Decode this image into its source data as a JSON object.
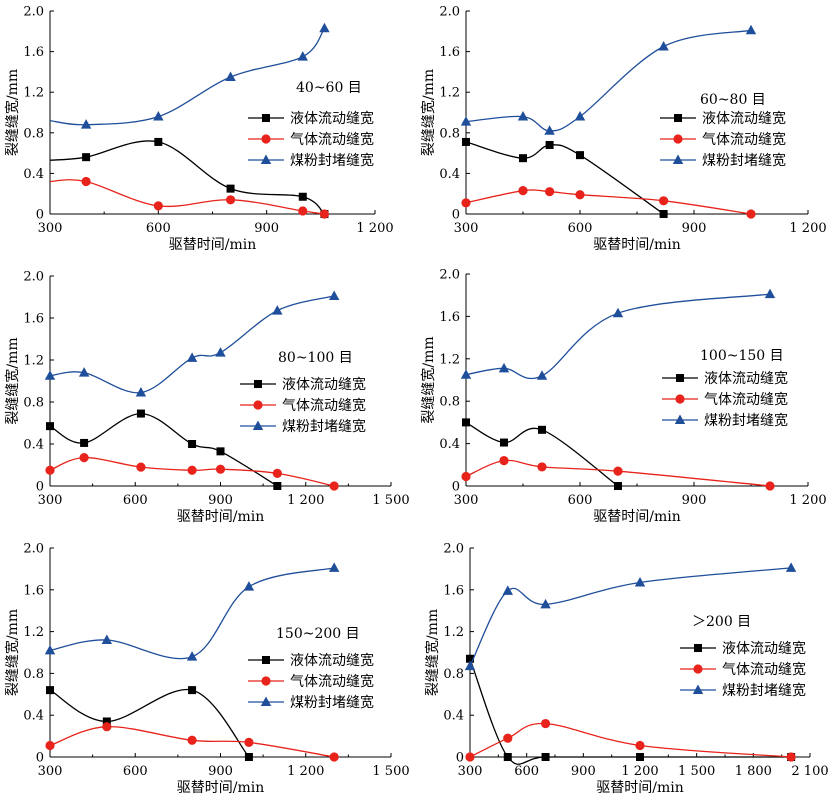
{
  "colors": {
    "liquid": "#000000",
    "gas": "#e8231c",
    "coal": "#1f4e9a",
    "axis": "#000000"
  },
  "chart_data": [
    {
      "type": "line",
      "annotation": "40~60 目",
      "xlabel": "驱替时间/min",
      "ylabel": "裂缝缝宽/mm",
      "xlim": [
        300,
        1200
      ],
      "ylim": [
        0,
        2.0
      ],
      "xticks": [
        300,
        600,
        900,
        1200
      ],
      "xtick_labels": [
        "300",
        "600",
        "900",
        "1 200"
      ],
      "yticks": [
        0,
        0.4,
        0.8,
        1.2,
        1.6,
        2.0
      ],
      "ytick_labels": [
        "0",
        "0.4",
        "0.8",
        "1.2",
        "1.6",
        "2.0"
      ],
      "legend_position": "right",
      "series": [
        {
          "name": "液体流动缝宽",
          "marker": "square",
          "colorKey": "liquid",
          "start": [
            300,
            0.53
          ],
          "points": [
            [
              400,
              0.56
            ],
            [
              600,
              0.71
            ],
            [
              800,
              0.25
            ],
            [
              1000,
              0.17
            ],
            [
              1060,
              0
            ]
          ]
        },
        {
          "name": "气体流动缝宽",
          "marker": "circle",
          "colorKey": "gas",
          "start": [
            300,
            0.32
          ],
          "points": [
            [
              400,
              0.32
            ],
            [
              600,
              0.08
            ],
            [
              800,
              0.14
            ],
            [
              1000,
              0.03
            ],
            [
              1060,
              0
            ]
          ]
        },
        {
          "name": "煤粉封堵缝宽",
          "marker": "triangle",
          "colorKey": "coal",
          "start": [
            300,
            0.92
          ],
          "points": [
            [
              400,
              0.88
            ],
            [
              600,
              0.96
            ],
            [
              800,
              1.35
            ],
            [
              1000,
              1.55
            ],
            [
              1060,
              1.83
            ]
          ]
        }
      ]
    },
    {
      "type": "line",
      "annotation": "60~80 目",
      "xlabel": "驱替时间/min",
      "ylabel": "裂缝缝宽/mm",
      "xlim": [
        300,
        1200
      ],
      "ylim": [
        0,
        2.0
      ],
      "xticks": [
        300,
        600,
        900,
        1200
      ],
      "xtick_labels": [
        "300",
        "600",
        "900",
        "1 200"
      ],
      "yticks": [
        0,
        0.4,
        0.8,
        1.2,
        1.6,
        2.0
      ],
      "ytick_labels": [
        "0",
        "0.4",
        "0.8",
        "1.2",
        "1.6",
        "2.0"
      ],
      "legend_position": "right",
      "series": [
        {
          "name": "液体流动缝宽",
          "marker": "square",
          "colorKey": "liquid",
          "points": [
            [
              300,
              0.71
            ],
            [
              450,
              0.55
            ],
            [
              520,
              0.68
            ],
            [
              600,
              0.58
            ],
            [
              820,
              0
            ]
          ]
        },
        {
          "name": "气体流动缝宽",
          "marker": "circle",
          "colorKey": "gas",
          "points": [
            [
              300,
              0.11
            ],
            [
              450,
              0.23
            ],
            [
              520,
              0.22
            ],
            [
              600,
              0.19
            ],
            [
              820,
              0.13
            ],
            [
              1050,
              0
            ]
          ]
        },
        {
          "name": "煤粉封堵缝宽",
          "marker": "triangle",
          "colorKey": "coal",
          "points": [
            [
              300,
              0.91
            ],
            [
              450,
              0.96
            ],
            [
              520,
              0.82
            ],
            [
              600,
              0.96
            ],
            [
              820,
              1.65
            ],
            [
              1050,
              1.81
            ]
          ]
        }
      ]
    },
    {
      "type": "line",
      "annotation": "80~100 目",
      "xlabel": "驱替时间/min",
      "ylabel": "裂缝缝宽/mm",
      "xlim": [
        300,
        1500
      ],
      "ylim": [
        0,
        2.0
      ],
      "xticks": [
        300,
        600,
        900,
        1200,
        1500
      ],
      "xtick_labels": [
        "300",
        "600",
        "900",
        "1 200",
        "1 500"
      ],
      "yticks": [
        0,
        0.4,
        0.8,
        1.2,
        1.6,
        2.0
      ],
      "ytick_labels": [
        "0",
        "0.4",
        "0.8",
        "1.2",
        "1.6",
        "2.0"
      ],
      "legend_position": "right",
      "series": [
        {
          "name": "液体流动缝宽",
          "marker": "square",
          "colorKey": "liquid",
          "points": [
            [
              300,
              0.57
            ],
            [
              420,
              0.41
            ],
            [
              620,
              0.69
            ],
            [
              800,
              0.4
            ],
            [
              900,
              0.33
            ],
            [
              1100,
              0
            ]
          ]
        },
        {
          "name": "气体流动缝宽",
          "marker": "circle",
          "colorKey": "gas",
          "points": [
            [
              300,
              0.15
            ],
            [
              420,
              0.27
            ],
            [
              620,
              0.18
            ],
            [
              800,
              0.15
            ],
            [
              900,
              0.16
            ],
            [
              1100,
              0.12
            ],
            [
              1300,
              0
            ]
          ]
        },
        {
          "name": "煤粉封堵缝宽",
          "marker": "triangle",
          "colorKey": "coal",
          "points": [
            [
              300,
              1.05
            ],
            [
              420,
              1.08
            ],
            [
              620,
              0.89
            ],
            [
              800,
              1.22
            ],
            [
              900,
              1.27
            ],
            [
              1100,
              1.67
            ],
            [
              1300,
              1.81
            ]
          ]
        }
      ]
    },
    {
      "type": "line",
      "annotation": "100~150 目",
      "xlabel": "驱替时间/min",
      "ylabel": "裂缝缝宽/mm",
      "xlim": [
        300,
        1200
      ],
      "ylim": [
        0,
        2.0
      ],
      "xticks": [
        300,
        600,
        900,
        1200
      ],
      "xtick_labels": [
        "300",
        "600",
        "900",
        "1 200"
      ],
      "yticks": [
        0,
        0.4,
        0.8,
        1.2,
        1.6,
        2.0
      ],
      "ytick_labels": [
        "0",
        "0.4",
        "0.8",
        "1.2",
        "1.6",
        "2.0"
      ],
      "legend_position": "right",
      "series": [
        {
          "name": "液体流动缝宽",
          "marker": "square",
          "colorKey": "liquid",
          "points": [
            [
              300,
              0.6
            ],
            [
              400,
              0.41
            ],
            [
              500,
              0.53
            ],
            [
              700,
              0
            ]
          ]
        },
        {
          "name": "气体流动缝宽",
          "marker": "circle",
          "colorKey": "gas",
          "points": [
            [
              300,
              0.09
            ],
            [
              400,
              0.24
            ],
            [
              500,
              0.18
            ],
            [
              700,
              0.14
            ],
            [
              1100,
              0
            ]
          ]
        },
        {
          "name": "煤粉封堵缝宽",
          "marker": "triangle",
          "colorKey": "coal",
          "points": [
            [
              300,
              1.05
            ],
            [
              400,
              1.11
            ],
            [
              500,
              1.04
            ],
            [
              700,
              1.63
            ],
            [
              1100,
              1.81
            ]
          ]
        }
      ]
    },
    {
      "type": "line",
      "annotation": "150~200 目",
      "xlabel": "驱替时间/min",
      "ylabel": "裂缝缝宽/mm",
      "xlim": [
        300,
        1500
      ],
      "ylim": [
        0,
        2.0
      ],
      "xticks": [
        300,
        600,
        900,
        1200,
        1500
      ],
      "xtick_labels": [
        "300",
        "600",
        "900",
        "1 200",
        "1 500"
      ],
      "yticks": [
        0,
        0.4,
        0.8,
        1.2,
        1.6,
        2.0
      ],
      "ytick_labels": [
        "0",
        "0.4",
        "0.8",
        "1.2",
        "1.6",
        "2.0"
      ],
      "legend_position": "right",
      "series": [
        {
          "name": "液体流动缝宽",
          "marker": "square",
          "colorKey": "liquid",
          "points": [
            [
              300,
              0.64
            ],
            [
              500,
              0.34
            ],
            [
              800,
              0.64
            ],
            [
              1000,
              0
            ]
          ]
        },
        {
          "name": "气体流动缝宽",
          "marker": "circle",
          "colorKey": "gas",
          "points": [
            [
              300,
              0.11
            ],
            [
              500,
              0.29
            ],
            [
              800,
              0.16
            ],
            [
              1000,
              0.14
            ],
            [
              1300,
              0
            ]
          ]
        },
        {
          "name": "煤粉封堵缝宽",
          "marker": "triangle",
          "colorKey": "coal",
          "points": [
            [
              300,
              1.02
            ],
            [
              500,
              1.12
            ],
            [
              800,
              0.96
            ],
            [
              1000,
              1.63
            ],
            [
              1300,
              1.81
            ]
          ]
        }
      ]
    },
    {
      "type": "line",
      "annotation": "＞200 目",
      "xlabel": "驱替时间/min",
      "ylabel": "裂缝缝宽/mm",
      "xlim": [
        300,
        2100
      ],
      "ylim": [
        0,
        2.0
      ],
      "xticks": [
        300,
        600,
        900,
        1200,
        1500,
        1800,
        2100
      ],
      "xtick_labels": [
        "300",
        "600",
        "900",
        "1 200",
        "1 500",
        "1 800",
        "2 100"
      ],
      "yticks": [
        0,
        0.4,
        0.8,
        1.2,
        1.6,
        2.0
      ],
      "ytick_labels": [
        "0",
        "0.4",
        "0.8",
        "1.2",
        "1.6",
        "2.0"
      ],
      "legend_position": "right",
      "series": [
        {
          "name": "液体流动缝宽",
          "marker": "square",
          "colorKey": "liquid",
          "points": [
            [
              300,
              0.94
            ],
            [
              500,
              0
            ],
            [
              700,
              0
            ],
            [
              1200,
              0
            ],
            [
              2000,
              0
            ]
          ]
        },
        {
          "name": "气体流动缝宽",
          "marker": "circle",
          "colorKey": "gas",
          "points": [
            [
              300,
              0
            ],
            [
              500,
              0.18
            ],
            [
              700,
              0.32
            ],
            [
              1200,
              0.11
            ],
            [
              2000,
              0
            ]
          ]
        },
        {
          "name": "煤粉封堵缝宽",
          "marker": "triangle",
          "colorKey": "coal",
          "points": [
            [
              300,
              0.87
            ],
            [
              500,
              1.59
            ],
            [
              700,
              1.46
            ],
            [
              1200,
              1.67
            ],
            [
              2000,
              1.81
            ]
          ]
        }
      ]
    }
  ]
}
